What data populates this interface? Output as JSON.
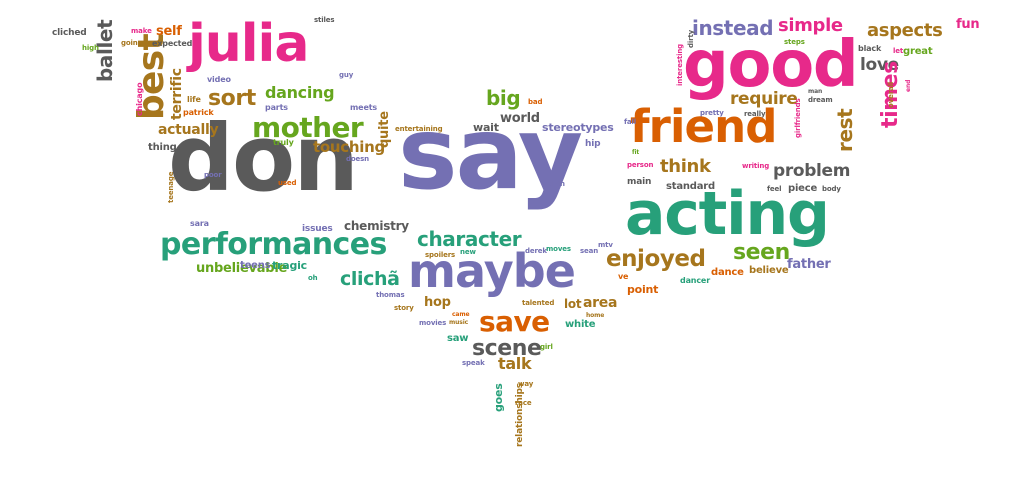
{
  "palette": {
    "gray": "#5a5a5a",
    "purple": "#7470b3",
    "green": "#27a07a",
    "pink": "#e7298a",
    "orange": "#d95f02",
    "olive": "#66a61e",
    "gold": "#a6761d"
  },
  "words": [
    {
      "text": "say",
      "color": "purple"
    },
    {
      "text": "don",
      "color": "gray"
    },
    {
      "text": "good",
      "color": "pink"
    },
    {
      "text": "acting",
      "color": "green"
    },
    {
      "text": "friend",
      "color": "orange"
    },
    {
      "text": "julia",
      "color": "pink"
    },
    {
      "text": "maybe",
      "color": "purple"
    },
    {
      "text": "performances",
      "color": "green"
    },
    {
      "text": "mother",
      "color": "olive"
    },
    {
      "text": "best",
      "color": "gold"
    },
    {
      "text": "character",
      "color": "green"
    },
    {
      "text": "enjoyed",
      "color": "gold"
    },
    {
      "text": "save",
      "color": "orange"
    },
    {
      "text": "scene",
      "color": "gray"
    },
    {
      "text": "instead",
      "color": "purple"
    },
    {
      "text": "simple",
      "color": "pink"
    },
    {
      "text": "aspects",
      "color": "gold"
    },
    {
      "text": "love",
      "color": "gray"
    },
    {
      "text": "sort",
      "color": "gold"
    },
    {
      "text": "dancing",
      "color": "olive"
    },
    {
      "text": "big",
      "color": "olive"
    },
    {
      "text": "require",
      "color": "gold"
    },
    {
      "text": "times",
      "color": "pink"
    },
    {
      "text": "rest",
      "color": "gold"
    },
    {
      "text": "think",
      "color": "gold"
    },
    {
      "text": "problem",
      "color": "gray"
    },
    {
      "text": "seen",
      "color": "olive"
    },
    {
      "text": "clichã",
      "color": "green"
    },
    {
      "text": "talk",
      "color": "gold"
    },
    {
      "text": "ballet",
      "color": "gray"
    },
    {
      "text": "actually",
      "color": "gold"
    },
    {
      "text": "touching",
      "color": "gold"
    },
    {
      "text": "hop",
      "color": "gold"
    },
    {
      "text": "lot",
      "color": "gold"
    },
    {
      "text": "area",
      "color": "gold"
    },
    {
      "text": "terrific",
      "color": "gold"
    },
    {
      "text": "self",
      "color": "orange"
    },
    {
      "text": "fun",
      "color": "pink"
    },
    {
      "text": "chemistry",
      "color": "gray"
    },
    {
      "text": "quite",
      "color": "gold"
    },
    {
      "text": "world",
      "color": "gray"
    },
    {
      "text": "stereotypes",
      "color": "purple"
    },
    {
      "text": "father",
      "color": "purple"
    },
    {
      "text": "dance",
      "color": "orange"
    },
    {
      "text": "believe",
      "color": "gold"
    },
    {
      "text": "unbelievable",
      "color": "olive"
    },
    {
      "text": "tragic",
      "color": "green"
    },
    {
      "text": "teens",
      "color": "purple"
    },
    {
      "text": "point",
      "color": "orange"
    },
    {
      "text": "great",
      "color": "olive"
    },
    {
      "text": "white",
      "color": "green"
    },
    {
      "text": "saw",
      "color": "green"
    },
    {
      "text": "goes",
      "color": "green"
    },
    {
      "text": "relationships",
      "color": "gold"
    },
    {
      "text": "piece",
      "color": "gray"
    },
    {
      "text": "standard",
      "color": "gray"
    },
    {
      "text": "wait",
      "color": "gray"
    },
    {
      "text": "issues",
      "color": "purple"
    },
    {
      "text": "hip",
      "color": "purple"
    },
    {
      "text": "main",
      "color": "gray"
    },
    {
      "text": "thing",
      "color": "gray"
    },
    {
      "text": "cliched",
      "color": "gray"
    },
    {
      "text": "truly",
      "color": "olive"
    },
    {
      "text": "parts",
      "color": "purple"
    },
    {
      "text": "meets",
      "color": "purple"
    },
    {
      "text": "video",
      "color": "purple"
    },
    {
      "text": "life",
      "color": "gold"
    },
    {
      "text": "patrick",
      "color": "orange"
    },
    {
      "text": "chicago",
      "color": "pink"
    },
    {
      "text": "expected",
      "color": "gray"
    },
    {
      "text": "make",
      "color": "pink"
    },
    {
      "text": "going",
      "color": "gold"
    },
    {
      "text": "high",
      "color": "olive"
    },
    {
      "text": "stiles",
      "color": "gray"
    },
    {
      "text": "guy",
      "color": "purple"
    },
    {
      "text": "bad",
      "color": "orange"
    },
    {
      "text": "entertaining",
      "color": "gold"
    },
    {
      "text": "doesn",
      "color": "purple"
    },
    {
      "text": "poor",
      "color": "purple"
    },
    {
      "text": "used",
      "color": "orange"
    },
    {
      "text": "sara",
      "color": "purple"
    },
    {
      "text": "teenage",
      "color": "gold"
    },
    {
      "text": "oh",
      "color": "green"
    },
    {
      "text": "thomas",
      "color": "purple"
    },
    {
      "text": "story",
      "color": "gold"
    },
    {
      "text": "movies",
      "color": "purple"
    },
    {
      "text": "music",
      "color": "gold"
    },
    {
      "text": "came",
      "color": "orange"
    },
    {
      "text": "talented",
      "color": "gold"
    },
    {
      "text": "home",
      "color": "gold"
    },
    {
      "text": "spoilers",
      "color": "gold"
    },
    {
      "text": "new",
      "color": "green"
    },
    {
      "text": "moves",
      "color": "green"
    },
    {
      "text": "sean",
      "color": "purple"
    },
    {
      "text": "derek",
      "color": "purple"
    },
    {
      "text": "mtv",
      "color": "purple"
    },
    {
      "text": "didn",
      "color": "purple"
    },
    {
      "text": "speak",
      "color": "purple"
    },
    {
      "text": "girl",
      "color": "olive"
    },
    {
      "text": "way",
      "color": "gold"
    },
    {
      "text": "race",
      "color": "gold"
    },
    {
      "text": "ve",
      "color": "orange"
    },
    {
      "text": "dancer",
      "color": "green"
    },
    {
      "text": "fall",
      "color": "purple"
    },
    {
      "text": "fit",
      "color": "olive"
    },
    {
      "text": "person",
      "color": "pink"
    },
    {
      "text": "feel",
      "color": "gray"
    },
    {
      "text": "writing",
      "color": "pink"
    },
    {
      "text": "body",
      "color": "gray"
    },
    {
      "text": "really",
      "color": "gray"
    },
    {
      "text": "pretty",
      "color": "purple"
    },
    {
      "text": "girlfriends",
      "color": "pink"
    },
    {
      "text": "man",
      "color": "gray"
    },
    {
      "text": "dream",
      "color": "gray"
    },
    {
      "text": "interesting",
      "color": "pink"
    },
    {
      "text": "dirty",
      "color": "gray"
    },
    {
      "text": "steps",
      "color": "olive"
    },
    {
      "text": "black",
      "color": "gray"
    },
    {
      "text": "let",
      "color": "pink"
    },
    {
      "text": "overall",
      "color": "gold"
    },
    {
      "text": "end",
      "color": "pink"
    }
  ]
}
